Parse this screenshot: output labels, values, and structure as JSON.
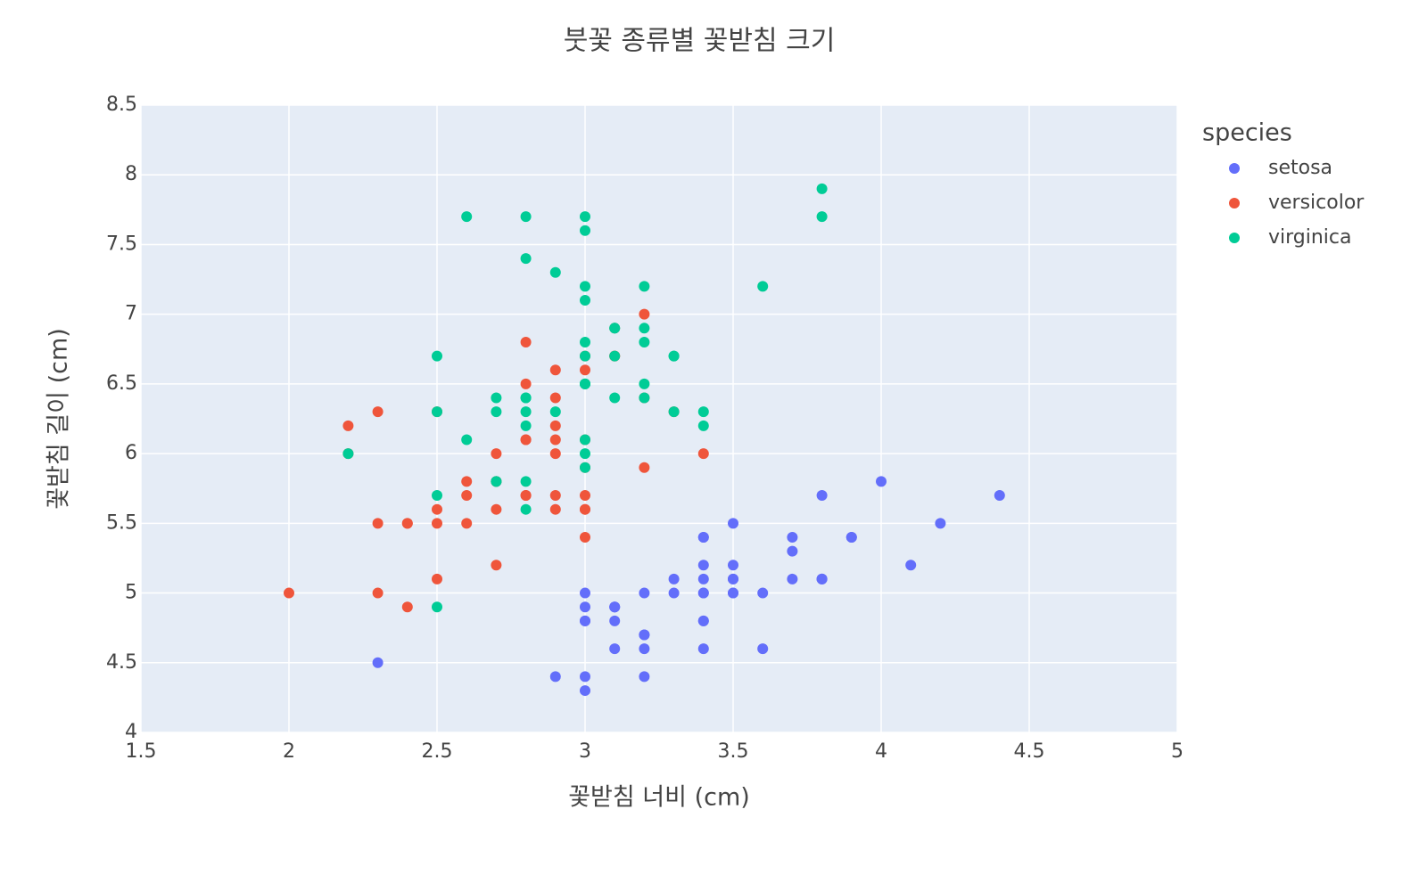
{
  "chart_data": {
    "type": "scatter",
    "title": "붓꽃 종류별 꽃받침 크기",
    "xlabel": "꽃받침 너비 (cm)",
    "ylabel": "꽃받침 길이 (cm)",
    "legend_title": "species",
    "legend": "outside-right",
    "grid": true,
    "xlim": [
      1.5,
      5
    ],
    "xticks": [
      1.5,
      2,
      2.5,
      3,
      3.5,
      4,
      4.5,
      5
    ],
    "ylim": [
      4,
      8.5
    ],
    "yticks": [
      4,
      4.5,
      5,
      5.5,
      6,
      6.5,
      7,
      7.5,
      8,
      8.5
    ],
    "series": [
      {
        "name": "setosa",
        "color": "#636efa",
        "x": [
          3.5,
          3.0,
          3.2,
          3.1,
          3.6,
          3.9,
          3.4,
          3.4,
          2.9,
          3.1,
          3.7,
          3.4,
          3.0,
          3.0,
          4.0,
          4.4,
          3.9,
          3.5,
          3.8,
          3.8,
          3.4,
          3.7,
          3.6,
          3.3,
          3.4,
          3.0,
          3.4,
          3.5,
          3.4,
          3.2,
          3.1,
          3.4,
          4.1,
          4.2,
          3.1,
          3.2,
          3.5,
          3.1,
          3.0,
          3.4,
          3.5,
          2.3,
          3.2,
          3.5,
          3.8,
          3.0,
          3.8,
          3.2,
          3.7,
          3.3
        ],
        "values": [
          5.1,
          4.9,
          4.7,
          4.6,
          5.0,
          5.4,
          4.6,
          5.0,
          4.4,
          4.9,
          5.4,
          4.8,
          4.8,
          4.3,
          5.8,
          5.7,
          5.4,
          5.1,
          5.7,
          5.1,
          5.4,
          5.1,
          4.6,
          5.1,
          4.8,
          5.0,
          5.0,
          5.2,
          5.2,
          4.7,
          4.8,
          5.4,
          5.2,
          5.5,
          4.9,
          5.0,
          5.5,
          4.9,
          4.4,
          5.1,
          5.0,
          4.5,
          4.4,
          5.0,
          5.1,
          4.8,
          5.1,
          4.6,
          5.3,
          5.0
        ]
      },
      {
        "name": "versicolor",
        "color": "#EF553B",
        "x": [
          3.2,
          3.2,
          3.1,
          2.3,
          2.8,
          2.8,
          3.3,
          2.4,
          2.9,
          2.7,
          2.0,
          3.0,
          2.2,
          2.9,
          2.9,
          3.1,
          3.0,
          2.7,
          2.2,
          2.5,
          3.2,
          2.8,
          2.5,
          2.8,
          2.9,
          3.0,
          2.8,
          3.0,
          2.9,
          2.6,
          2.4,
          2.4,
          2.7,
          2.7,
          3.0,
          3.4,
          3.1,
          2.3,
          3.0,
          2.5,
          2.6,
          3.0,
          2.6,
          2.3,
          2.7,
          3.0,
          2.9,
          2.9,
          2.5,
          2.8
        ],
        "values": [
          7.0,
          6.4,
          6.9,
          5.5,
          6.5,
          5.7,
          6.3,
          4.9,
          6.6,
          5.2,
          5.0,
          5.9,
          6.0,
          6.1,
          5.6,
          6.7,
          5.6,
          5.8,
          6.2,
          5.6,
          5.9,
          6.1,
          6.3,
          6.1,
          6.4,
          6.6,
          6.8,
          6.7,
          6.0,
          5.7,
          5.5,
          5.5,
          5.8,
          6.0,
          5.4,
          6.0,
          6.7,
          6.3,
          5.6,
          5.5,
          5.5,
          6.1,
          5.8,
          5.0,
          5.6,
          5.7,
          5.7,
          6.2,
          5.1,
          5.7
        ]
      },
      {
        "name": "virginica",
        "color": "#00cc96",
        "x": [
          3.3,
          2.7,
          3.0,
          2.9,
          3.0,
          3.0,
          2.5,
          2.9,
          2.5,
          3.6,
          3.2,
          2.7,
          3.0,
          2.5,
          2.8,
          3.2,
          3.0,
          3.8,
          2.6,
          2.2,
          3.2,
          2.8,
          2.8,
          2.7,
          3.3,
          3.2,
          2.8,
          3.0,
          2.8,
          3.0,
          2.8,
          3.8,
          2.8,
          2.8,
          2.6,
          3.0,
          3.4,
          3.1,
          3.0,
          3.1,
          3.1,
          3.1,
          2.7,
          3.2,
          3.3,
          3.0,
          2.5,
          3.0,
          3.4,
          3.0
        ],
        "values": [
          6.3,
          5.8,
          7.1,
          6.3,
          6.5,
          7.6,
          4.9,
          7.3,
          6.7,
          7.2,
          6.5,
          6.4,
          6.8,
          5.7,
          5.8,
          6.4,
          6.5,
          7.7,
          7.7,
          6.0,
          6.9,
          5.6,
          7.7,
          6.3,
          6.7,
          7.2,
          6.2,
          6.1,
          6.4,
          7.2,
          7.4,
          7.9,
          6.4,
          6.3,
          6.1,
          7.7,
          6.3,
          6.4,
          6.0,
          6.9,
          6.7,
          6.9,
          5.8,
          6.8,
          6.7,
          6.7,
          6.3,
          6.5,
          6.2,
          5.9
        ]
      }
    ]
  }
}
